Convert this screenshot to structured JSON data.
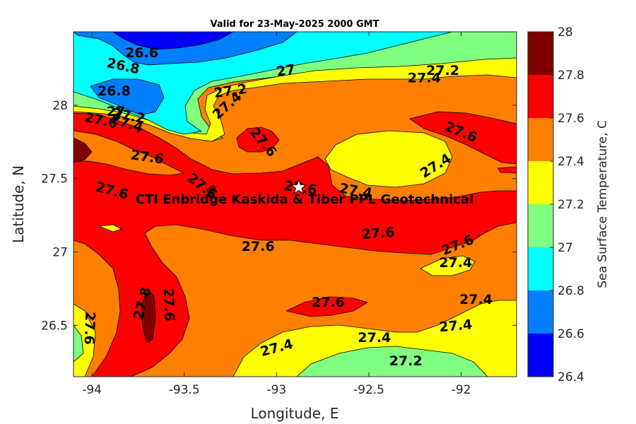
{
  "title": "Valid for 23-May-2025 2000 GMT",
  "x_axis": {
    "label": "Longitude, E",
    "range": [
      -94.1,
      -91.7
    ],
    "ticks": [
      {
        "value": -94,
        "label": "-94"
      },
      {
        "value": -93.5,
        "label": "-93.5"
      },
      {
        "value": -93,
        "label": "-93"
      },
      {
        "value": -92.5,
        "label": "-92.5"
      },
      {
        "value": -92,
        "label": "-92"
      }
    ]
  },
  "y_axis": {
    "label": "Latitude, N",
    "range": [
      26.15,
      28.5
    ],
    "ticks": [
      {
        "value": 26.5,
        "label": "26.5"
      },
      {
        "value": 27,
        "label": "27"
      },
      {
        "value": 27.5,
        "label": "27.5"
      },
      {
        "value": 28,
        "label": "28"
      }
    ]
  },
  "colorbar": {
    "label": "Sea Surface Temperature, C",
    "levels": [
      26.4,
      26.6,
      26.8,
      27.0,
      27.2,
      27.4,
      27.6,
      27.8,
      28.0
    ],
    "tick_labels": [
      "26.4",
      "26.6",
      "26.8",
      "27",
      "27.2",
      "27.4",
      "27.6",
      "27.8",
      "28"
    ],
    "colors": [
      "#0000ff",
      "#0080ff",
      "#00ffff",
      "#80ff80",
      "#ffff00",
      "#ff8000",
      "#ff0000",
      "#800000"
    ]
  },
  "site": {
    "name": "CTI Enbridge  Kaskida & Tiber PPL Geotechnical",
    "lon": -92.88,
    "lat": 27.44
  },
  "contour_labels": [
    {
      "text": "26.6",
      "lon": -93.73,
      "lat": 28.36,
      "angle": 0
    },
    {
      "text": "26.8",
      "lon": -93.83,
      "lat": 28.27,
      "angle": 12
    },
    {
      "text": "26.8",
      "lon": -93.88,
      "lat": 28.1,
      "angle": 0
    },
    {
      "text": "27",
      "lon": -92.95,
      "lat": 28.24,
      "angle": -8
    },
    {
      "text": "27.2",
      "lon": -92.1,
      "lat": 28.24,
      "angle": 0
    },
    {
      "text": "27.4",
      "lon": -92.2,
      "lat": 28.19,
      "angle": 0
    },
    {
      "text": "27.2",
      "lon": -93.25,
      "lat": 28.1,
      "angle": -8
    },
    {
      "text": "27.4",
      "lon": -93.27,
      "lat": 28.0,
      "angle": -42
    },
    {
      "text": "27",
      "lon": -93.87,
      "lat": 27.96,
      "angle": 0
    },
    {
      "text": "27.2",
      "lon": -93.8,
      "lat": 27.93,
      "angle": 10
    },
    {
      "text": "27.6",
      "lon": -93.95,
      "lat": 27.9,
      "angle": 12
    },
    {
      "text": "27.4",
      "lon": -93.81,
      "lat": 27.88,
      "angle": 18
    },
    {
      "text": "27.6",
      "lon": -92.0,
      "lat": 27.82,
      "angle": 22
    },
    {
      "text": "27.6",
      "lon": -93.07,
      "lat": 27.75,
      "angle": 50
    },
    {
      "text": "27.6",
      "lon": -93.7,
      "lat": 27.65,
      "angle": 8
    },
    {
      "text": "27.4",
      "lon": -92.14,
      "lat": 27.59,
      "angle": -32
    },
    {
      "text": "27.6",
      "lon": -93.4,
      "lat": 27.45,
      "angle": 38
    },
    {
      "text": "27.6",
      "lon": -92.87,
      "lat": 27.44,
      "angle": 8
    },
    {
      "text": "27.4",
      "lon": -92.57,
      "lat": 27.42,
      "angle": 10
    },
    {
      "text": "27.6",
      "lon": -93.89,
      "lat": 27.42,
      "angle": 15
    },
    {
      "text": "27.6",
      "lon": -92.45,
      "lat": 27.13,
      "angle": -4
    },
    {
      "text": "27.6",
      "lon": -93.1,
      "lat": 27.04,
      "angle": 0
    },
    {
      "text": "27.6",
      "lon": -92.02,
      "lat": 27.05,
      "angle": -22
    },
    {
      "text": "27.4",
      "lon": -92.03,
      "lat": 26.93,
      "angle": 0
    },
    {
      "text": "27.8",
      "lon": -93.73,
      "lat": 26.65,
      "angle": -75
    },
    {
      "text": "27.6",
      "lon": -93.58,
      "lat": 26.64,
      "angle": 88
    },
    {
      "text": "27.6",
      "lon": -92.72,
      "lat": 26.66,
      "angle": 0
    },
    {
      "text": "27.4",
      "lon": -91.92,
      "lat": 26.68,
      "angle": 0
    },
    {
      "text": "27.6",
      "lon": -94.01,
      "lat": 26.48,
      "angle": 92
    },
    {
      "text": "27.4",
      "lon": -92.03,
      "lat": 26.5,
      "angle": -5
    },
    {
      "text": "27.4",
      "lon": -92.47,
      "lat": 26.42,
      "angle": 0
    },
    {
      "text": "27.4",
      "lon": -93.0,
      "lat": 26.35,
      "angle": -15
    },
    {
      "text": "27.2",
      "lon": -92.3,
      "lat": 26.26,
      "angle": 0
    }
  ]
}
